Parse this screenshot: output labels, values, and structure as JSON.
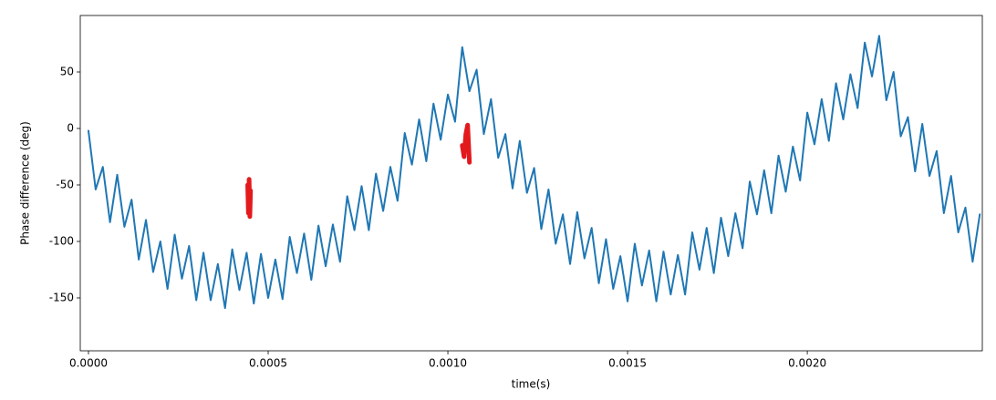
{
  "chart_data": {
    "type": "line",
    "xlabel": "time(s)",
    "ylabel": "Phase difference (deg)",
    "xlim": [
      -2.28e-05,
      0.002487
    ],
    "ylim": [
      -196.8,
      100
    ],
    "xticks": [
      {
        "value": 0,
        "label": "0.0000"
      },
      {
        "value": 0.0005,
        "label": "0.0005"
      },
      {
        "value": 0.001,
        "label": "0.0010"
      },
      {
        "value": 0.0015,
        "label": "0.0015"
      },
      {
        "value": 0.002,
        "label": "0.0020"
      }
    ],
    "yticks": [
      -150,
      -100,
      -50,
      0,
      50
    ],
    "series": [
      {
        "color": "#1f77b4",
        "x": [
          0,
          2e-05,
          4e-05,
          6e-05,
          8e-05,
          0.0001,
          0.00012,
          0.00014,
          0.00016,
          0.00018,
          0.0002,
          0.00022,
          0.00024,
          0.00026,
          0.00028,
          0.0003,
          0.00032,
          0.00034,
          0.00036,
          0.00038,
          0.0004,
          0.00042,
          0.00044,
          0.00046,
          0.00048,
          0.0005,
          0.00052,
          0.00054,
          0.00056,
          0.00058,
          0.0006,
          0.00062,
          0.00064,
          0.00066,
          0.00068,
          0.0007,
          0.00072,
          0.00074,
          0.00076,
          0.00078,
          0.0008,
          0.00082,
          0.00084,
          0.00086,
          0.00088,
          0.0009,
          0.00092,
          0.00094,
          0.00096,
          0.00098,
          0.001,
          0.00102,
          0.00104,
          0.00106,
          0.00108,
          0.0011,
          0.00112,
          0.00114,
          0.00116,
          0.00118,
          0.0012,
          0.00122,
          0.00124,
          0.00126,
          0.00128,
          0.0013,
          0.00132,
          0.00134,
          0.00136,
          0.00138,
          0.0014,
          0.00142,
          0.00144,
          0.00146,
          0.00148,
          0.0015,
          0.00152,
          0.00154,
          0.00156,
          0.00158,
          0.0016,
          0.00162,
          0.00164,
          0.00166,
          0.00168,
          0.0017,
          0.00172,
          0.00174,
          0.00176,
          0.00178,
          0.0018,
          0.00182,
          0.00184,
          0.00186,
          0.00188,
          0.0019,
          0.00192,
          0.00194,
          0.00196,
          0.00198,
          0.002,
          0.00202,
          0.00204,
          0.00206,
          0.00208,
          0.0021,
          0.00212,
          0.00214,
          0.00216,
          0.00218,
          0.0022,
          0.00222,
          0.00224,
          0.00226,
          0.00228,
          0.0023,
          0.00232,
          0.00234,
          0.00236,
          0.00238,
          0.0024,
          0.00242,
          0.00244,
          0.00246,
          0.00248
        ],
        "values": [
          -2,
          -54,
          -34,
          -83,
          -41,
          -87,
          -63,
          -116,
          -81,
          -127,
          -100,
          -142,
          -94,
          -133,
          -104,
          -152,
          -110,
          -152,
          -120,
          -159,
          -107,
          -143,
          -110,
          -155,
          -111,
          -150,
          -116,
          -151,
          -96,
          -128,
          -93,
          -134,
          -86,
          -122,
          -85,
          -118,
          -60,
          -90,
          -51,
          -90,
          -40,
          -73,
          -34,
          -64,
          -4,
          -32,
          8,
          -29,
          22,
          -10,
          30,
          6,
          72,
          33,
          52,
          -5,
          26,
          -26,
          -5,
          -53,
          -11,
          -57,
          -35,
          -89,
          -54,
          -102,
          -76,
          -120,
          -74,
          -115,
          -88,
          -137,
          -98,
          -142,
          -113,
          -153,
          -102,
          -139,
          -108,
          -153,
          -109,
          -147,
          -112,
          -147,
          -92,
          -125,
          -88,
          -128,
          -79,
          -113,
          -75,
          -106,
          -47,
          -76,
          -37,
          -75,
          -24,
          -56,
          -16,
          -46,
          14,
          -14,
          26,
          -11,
          40,
          8,
          48,
          18,
          76,
          46,
          82,
          25,
          50,
          -7,
          10,
          -38,
          4,
          -42,
          -20,
          -75,
          -42,
          -92,
          -70,
          -118,
          -76
        ]
      },
      {
        "color": "#e31a1c",
        "x": [
          0.000443,
          0.000445,
          0.000447,
          0.000449,
          0.000451
        ],
        "values": [
          -50,
          -75,
          -45,
          -78,
          -55
        ]
      },
      {
        "color": "#e31a1c",
        "x": [
          0.00104,
          0.001045,
          0.00105,
          0.001055,
          0.00106
        ],
        "values": [
          -15,
          -25,
          -5,
          3,
          -30
        ]
      }
    ]
  }
}
